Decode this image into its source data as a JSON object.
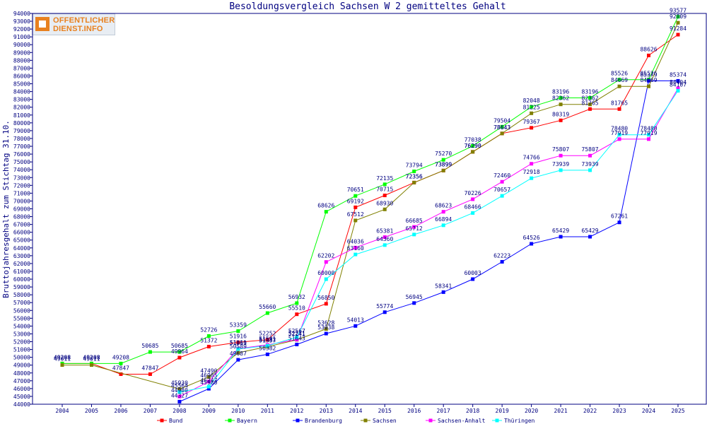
{
  "logo": {
    "line1": "OFFENTLICHER",
    "line2": "DIENST.INFO"
  },
  "chart_data": {
    "type": "line",
    "title": "Besoldungsvergleich Sachsen W 2 gemitteltes Gehalt",
    "xlabel": "",
    "ylabel": "Bruttojahresgehalt zum Stichtag 31.10.",
    "categories": [
      "2004",
      "2005",
      "2006",
      "2007",
      "2008",
      "2009",
      "2010",
      "2011",
      "2012",
      "2013",
      "2014",
      "2015",
      "2016",
      "2017",
      "2018",
      "2019",
      "2020",
      "2021",
      "2022",
      "2023",
      "2024",
      "2025"
    ],
    "ylim": [
      44000,
      94000
    ],
    "ytick_step": 1000,
    "grid": false,
    "legend_position": "bottom",
    "series": [
      {
        "name": "Bund",
        "color": "#ff0000",
        "values": [
          49208,
          49208,
          47847,
          47847,
          49964,
          51372,
          51916,
          52252,
          55510,
          56850,
          69192,
          70715,
          72356,
          73899,
          76290,
          78643,
          79367,
          80319,
          81765,
          81765,
          88626,
          91284
        ]
      },
      {
        "name": "Bayern",
        "color": "#00ff00",
        "values": [
          49208,
          49208,
          49208,
          50685,
          50685,
          52726,
          53359,
          55660,
          56932,
          68626,
          70651,
          72135,
          73794,
          75270,
          77038,
          79504,
          82048,
          83196,
          83196,
          85526,
          85526,
          93577
        ]
      },
      {
        "name": "Brandenburg",
        "color": "#0000ff",
        "values": [
          null,
          null,
          null,
          null,
          44327,
          45980,
          49687,
          50382,
          51643,
          53038,
          54013,
          55774,
          56945,
          58341,
          60003,
          62223,
          64526,
          65429,
          65429,
          67261,
          85379,
          85374
        ]
      },
      {
        "name": "Sachsen",
        "color": "#808000",
        "values": [
          49011,
          49011,
          null,
          null,
          45930,
          47490,
          50589,
          51357,
          52241,
          53628,
          67512,
          68930,
          72356,
          73899,
          76290,
          78643,
          81225,
          82362,
          82362,
          84669,
          84669,
          92809
        ]
      },
      {
        "name": "Sachsen-Anhalt",
        "color": "#ff00ff",
        "values": [
          null,
          null,
          null,
          null,
          44980,
          46905,
          51111,
          51591,
          52271,
          62202,
          64036,
          65381,
          66685,
          68623,
          70226,
          72460,
          74766,
          75807,
          75807,
          77919,
          77919,
          84404
        ]
      },
      {
        "name": "Thüringen",
        "color": "#00ffff",
        "values": [
          null,
          null,
          null,
          null,
          45564,
          46247,
          51069,
          51481,
          52567,
          60000,
          63160,
          64360,
          65712,
          66894,
          68466,
          70657,
          72918,
          73939,
          73939,
          78480,
          78480,
          84107
        ]
      }
    ]
  }
}
